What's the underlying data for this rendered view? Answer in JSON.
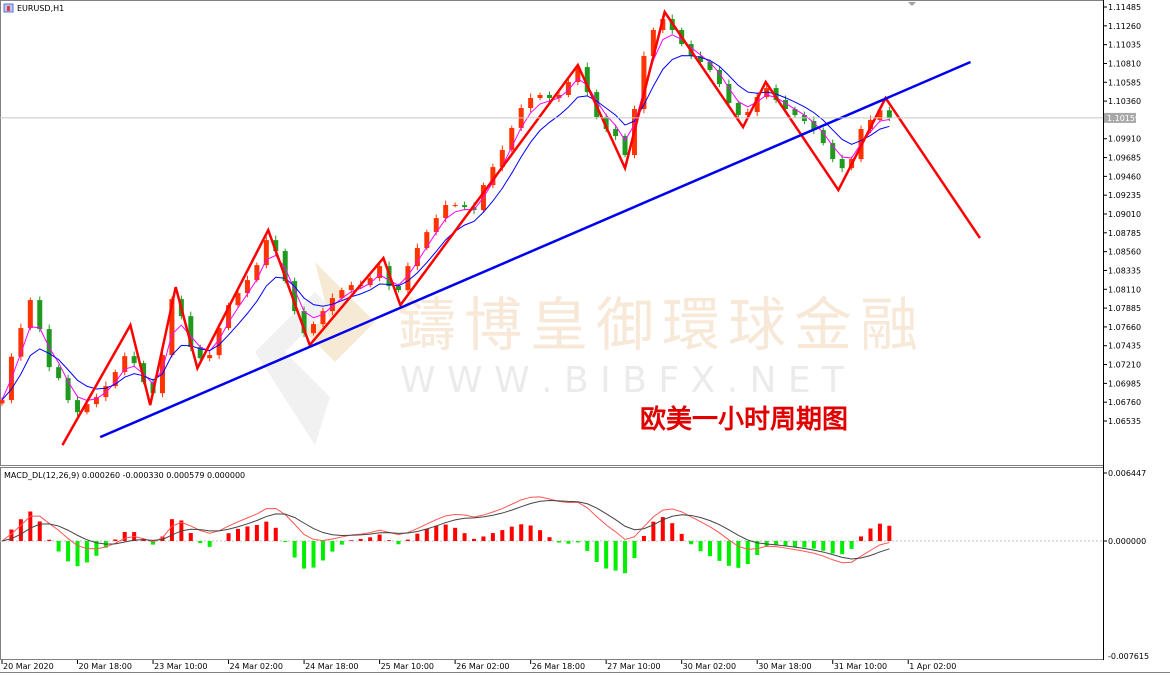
{
  "window": {
    "symbol_label": "EURUSD,H1"
  },
  "price_axis": {
    "ticks": [
      "1.11485",
      "1.11260",
      "1.11035",
      "1.10810",
      "1.10585",
      "1.10360",
      "1.09910",
      "1.09685",
      "1.09460",
      "1.09235",
      "1.09010",
      "1.08785",
      "1.08560",
      "1.08335",
      "1.08110",
      "1.07885",
      "1.07660",
      "1.07435",
      "1.07210",
      "1.06985",
      "1.06760",
      "1.06535"
    ],
    "current_price": "1.10159"
  },
  "time_axis": {
    "labels": [
      "20 Mar 2020",
      "20 Mar 18:00",
      "23 Mar 10:00",
      "24 Mar 02:00",
      "24 Mar 18:00",
      "25 Mar 10:00",
      "26 Mar 02:00",
      "26 Mar 18:00",
      "27 Mar 10:00",
      "30 Mar 02:00",
      "30 Mar 18:00",
      "31 Mar 10:00",
      "1 Apr 02:00"
    ]
  },
  "macd": {
    "label": "MACD_DL(12,26,9) 0.000260 -0.000330 0.000579 0.000000",
    "axis": {
      "max": "0.006447",
      "zero": "0.000000",
      "min": "-0.007615"
    }
  },
  "annotation": "欧美一小时周期图",
  "watermark": {
    "name": "鑄博皇御環球金融",
    "url": "W W W . B I B F X . N E T"
  },
  "colors": {
    "bull_candle": "#ff3300",
    "bear_candle": "#1f9a1f",
    "ma_fast": "#ff00ff",
    "ma_slow": "#0000ff",
    "zigzag": "#ff0000",
    "trendline": "#0000ee",
    "hist_positive": "#ff0000",
    "hist_negative": "#00ee00",
    "macd_line": "#ff5555",
    "signal_line": "#444444",
    "annotation": "#e00000"
  },
  "chart_data": {
    "type": "candlestick",
    "symbol": "EURUSD",
    "timeframe": "H1",
    "ylim": [
      1.0631,
      1.1151
    ],
    "grid": false,
    "closes": [
      1.06785,
      1.07304,
      1.07646,
      1.07981,
      1.07634,
      1.07179,
      1.07048,
      1.06785,
      1.06641,
      1.06737,
      1.06821,
      1.06952,
      1.0712,
      1.07311,
      1.07227,
      1.07,
      1.06868,
      1.07323,
      1.07993,
      1.07789,
      1.07419,
      1.07287,
      1.07323,
      1.07646,
      1.07921,
      1.08064,
      1.0822,
      1.08399,
      1.08698,
      1.08567,
      1.08208,
      1.07849,
      1.07586,
      1.07694,
      1.07849,
      1.08005,
      1.081,
      1.0816,
      1.0816,
      1.08244,
      1.08387,
      1.08148,
      1.081,
      1.08387,
      1.08603,
      1.08794,
      1.08961,
      1.09117,
      1.09117,
      1.09093,
      1.09057,
      1.09356,
      1.09571,
      1.09775,
      1.10038,
      1.10277,
      1.10397,
      1.10433,
      1.10397,
      1.10433,
      1.10588,
      1.10767,
      1.10468,
      1.10169,
      1.10026,
      1.09942,
      1.09715,
      1.10265,
      1.10899,
      1.1121,
      1.11341,
      1.1121,
      1.11042,
      1.10899,
      1.10827,
      1.10732,
      1.10564,
      1.10337,
      1.10193,
      1.10229,
      1.10409,
      1.10516,
      1.10373,
      1.10265,
      1.10193,
      1.10122,
      1.10014,
      1.09858,
      1.09667,
      1.09559,
      1.09667,
      1.10026,
      1.10134,
      1.1025,
      1.10159
    ],
    "zigzag": [
      {
        "bar": 6.4,
        "price": 1.06247
      },
      {
        "bar": 13.6,
        "price": 1.07682
      },
      {
        "bar": 15.7,
        "price": 1.06725
      },
      {
        "bar": 18.4,
        "price": 1.08136
      },
      {
        "bar": 20.7,
        "price": 1.07167
      },
      {
        "bar": 28.2,
        "price": 1.08818
      },
      {
        "bar": 32.6,
        "price": 1.07443
      },
      {
        "bar": 40.4,
        "price": 1.08483
      },
      {
        "bar": 42.2,
        "price": 1.07921
      },
      {
        "bar": 61.0,
        "price": 1.10791
      },
      {
        "bar": 66.0,
        "price": 1.09559
      },
      {
        "bar": 70.2,
        "price": 1.11425
      },
      {
        "bar": 78.5,
        "price": 1.1005
      },
      {
        "bar": 80.9,
        "price": 1.10588
      },
      {
        "bar": 88.6,
        "price": 1.09296
      },
      {
        "bar": 93.6,
        "price": 1.10397
      },
      {
        "bar": 103.6,
        "price": 1.08722
      }
    ],
    "trendline": [
      {
        "bar": 10.4,
        "price": 1.06342
      },
      {
        "bar": 102.6,
        "price": 1.10827
      }
    ]
  }
}
